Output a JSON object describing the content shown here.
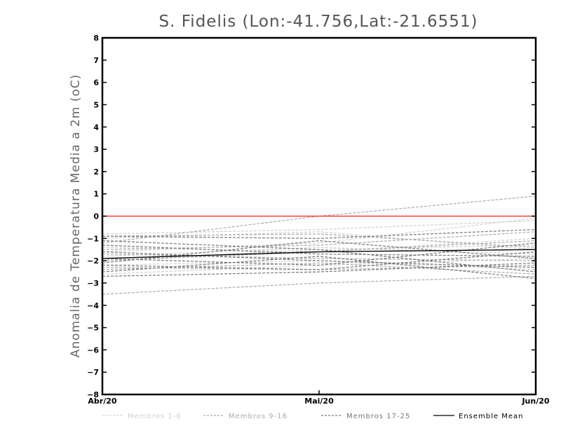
{
  "chart_data": {
    "type": "line",
    "title": "S. Fidelis (Lon:-41.756,Lat:-21.6551)",
    "ylabel": "Anomalia de Temperatura Media a 2m (oC)",
    "xlabel": "",
    "categories": [
      "Abr/20",
      "Mai/20",
      "Jun/20"
    ],
    "ylim": [
      -8,
      8
    ],
    "yticks": [
      -8,
      -7,
      -6,
      -5,
      -4,
      -3,
      -2,
      -1,
      0,
      1,
      2,
      3,
      4,
      5,
      6,
      7,
      8
    ],
    "reference_line": {
      "value": 0,
      "color": "#ff3b30"
    },
    "legend": [
      {
        "label": "Membros 1-8",
        "color": "#d0d0d0",
        "style": "dashed"
      },
      {
        "label": "Membros 9-16",
        "color": "#aaaaaa",
        "style": "dashed"
      },
      {
        "label": "Membros 17-25",
        "color": "#777777",
        "style": "dashed"
      },
      {
        "label": "Ensemble Mean",
        "color": "#000000",
        "style": "solid"
      }
    ],
    "series": [
      {
        "group": 0,
        "values": [
          -0.8,
          -0.6,
          -0.2
        ]
      },
      {
        "group": 0,
        "values": [
          -1.6,
          -1.2,
          -0.1
        ]
      },
      {
        "group": 0,
        "values": [
          -2.0,
          -1.5,
          -1.3
        ]
      },
      {
        "group": 0,
        "values": [
          -1.4,
          -1.6,
          -1.0
        ]
      },
      {
        "group": 0,
        "values": [
          -2.2,
          -2.0,
          -2.4
        ]
      },
      {
        "group": 0,
        "values": [
          -1.0,
          -0.7,
          -1.5
        ]
      },
      {
        "group": 0,
        "values": [
          -1.8,
          -1.4,
          -1.7
        ]
      },
      {
        "group": 0,
        "values": [
          -2.6,
          -2.2,
          -1.9
        ]
      },
      {
        "group": 1,
        "values": [
          -1.2,
          0.0,
          0.9
        ]
      },
      {
        "group": 1,
        "values": [
          -0.9,
          -0.8,
          -1.4
        ]
      },
      {
        "group": 1,
        "values": [
          -2.4,
          -2.1,
          -2.6
        ]
      },
      {
        "group": 1,
        "values": [
          -1.7,
          -1.9,
          -2.0
        ]
      },
      {
        "group": 1,
        "values": [
          -3.5,
          -3.0,
          -2.7
        ]
      },
      {
        "group": 1,
        "values": [
          -2.0,
          -1.6,
          -1.1
        ]
      },
      {
        "group": 1,
        "values": [
          -1.5,
          -1.3,
          -0.7
        ]
      },
      {
        "group": 1,
        "values": [
          -2.3,
          -2.4,
          -2.2
        ]
      },
      {
        "group": 2,
        "values": [
          -0.9,
          -1.0,
          -0.6
        ]
      },
      {
        "group": 2,
        "values": [
          -2.5,
          -1.8,
          -2.8
        ]
      },
      {
        "group": 2,
        "values": [
          -1.9,
          -2.2,
          -1.2
        ]
      },
      {
        "group": 2,
        "values": [
          -1.3,
          -1.7,
          -1.8
        ]
      },
      {
        "group": 2,
        "values": [
          -2.7,
          -2.5,
          -2.1
        ]
      },
      {
        "group": 2,
        "values": [
          -2.1,
          -1.1,
          -1.9
        ]
      },
      {
        "group": 2,
        "values": [
          -1.6,
          -2.0,
          -2.3
        ]
      },
      {
        "group": 2,
        "values": [
          -2.2,
          -2.4,
          -1.6
        ]
      },
      {
        "group": 2,
        "values": [
          -1.1,
          -1.5,
          -2.5
        ]
      },
      {
        "group": 3,
        "values": [
          -1.9,
          -1.6,
          -1.5
        ]
      }
    ]
  }
}
